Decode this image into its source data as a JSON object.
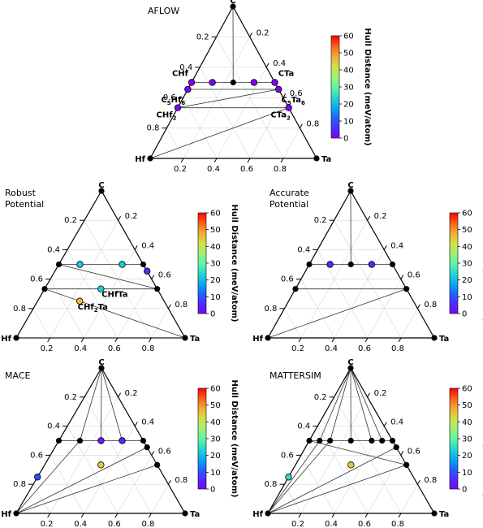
{
  "colorbar": {
    "label": "Hull Distance (meV/atom)",
    "ticks": [
      "0",
      "10",
      "20",
      "30",
      "40",
      "50",
      "60"
    ],
    "range": [
      0,
      60
    ],
    "colormap": "rainbow"
  },
  "corner_labels": {
    "top": "C",
    "left": "Hf",
    "right": "Ta"
  },
  "bottom_ticks": [
    "0.2",
    "0.4",
    "0.6",
    "0.8"
  ],
  "left_ticks": [
    "0.2",
    "0.4",
    "0.6",
    "0.8"
  ],
  "right_ticks": [
    "0.8",
    "0.6",
    "0.4",
    "0.2"
  ],
  "chart_data": [
    {
      "type": "ternary-phase-diagram",
      "title": "AFLOW",
      "components": [
        "C",
        "Hf",
        "Ta"
      ],
      "phases": [
        {
          "label": "CHf",
          "C": 0.5,
          "Ta": 0.0,
          "hull_distance": 0
        },
        {
          "label": "C5Hf6",
          "C": 0.4545,
          "Ta": 0.0,
          "hull_distance": 0
        },
        {
          "label": "CTa",
          "C": 0.5,
          "Ta": 0.5,
          "hull_distance": 0
        },
        {
          "label": "C5Ta6",
          "C": 0.4545,
          "Ta": 0.5455,
          "hull_distance": 0
        },
        {
          "label": "CHf2",
          "C": 0.3333,
          "Ta": 0.0,
          "hull_distance": 0
        },
        {
          "label": "CTa2",
          "C": 0.3333,
          "Ta": 0.6667,
          "hull_distance": 0
        },
        {
          "label": "",
          "C": 0.5,
          "Ta": 0.125,
          "hull_distance": 0
        },
        {
          "label": "",
          "C": 0.5,
          "Ta": 0.375,
          "hull_distance": 0
        }
      ]
    },
    {
      "type": "ternary-phase-diagram",
      "title": "Robust\nPotential",
      "components": [
        "C",
        "Hf",
        "Ta"
      ],
      "phases": [
        {
          "label": "CHfTa",
          "C": 0.3333,
          "Ta": 0.3333,
          "hull_distance": 22
        },
        {
          "label": "CHf2Ta",
          "C": 0.25,
          "Ta": 0.25,
          "hull_distance": 46
        },
        {
          "label": "",
          "C": 0.5,
          "Ta": 0.125,
          "hull_distance": 22
        },
        {
          "label": "",
          "C": 0.5,
          "Ta": 0.375,
          "hull_distance": 22
        },
        {
          "label": "",
          "C": 0.4545,
          "Ta": 0.5455,
          "hull_distance": 6
        }
      ]
    },
    {
      "type": "ternary-phase-diagram",
      "title": "Accurate\nPotential",
      "components": [
        "C",
        "Hf",
        "Ta"
      ],
      "phases": [
        {
          "label": "",
          "C": 0.5,
          "Ta": 0.125,
          "hull_distance": 6
        },
        {
          "label": "",
          "C": 0.5,
          "Ta": 0.375,
          "hull_distance": 6
        }
      ]
    },
    {
      "type": "ternary-phase-diagram",
      "title": "MACE",
      "components": [
        "C",
        "Hf",
        "Ta"
      ],
      "phases": [
        {
          "label": "",
          "C": 0.5,
          "Ta": 0.25,
          "hull_distance": 3
        },
        {
          "label": "",
          "C": 0.5,
          "Ta": 0.375,
          "hull_distance": 5
        },
        {
          "label": "",
          "C": 0.3333,
          "Ta": 0.3333,
          "hull_distance": 45
        },
        {
          "label": "",
          "C": 0.25,
          "Ta": 0.0,
          "hull_distance": 10
        }
      ]
    },
    {
      "type": "ternary-phase-diagram",
      "title": "MATTERSIM",
      "components": [
        "C",
        "Hf",
        "Ta"
      ],
      "phases": [
        {
          "label": "",
          "C": 0.3333,
          "Ta": 0.3333,
          "hull_distance": 45
        },
        {
          "label": "",
          "C": 0.25,
          "Ta": 0.0,
          "hull_distance": 25
        }
      ]
    }
  ]
}
